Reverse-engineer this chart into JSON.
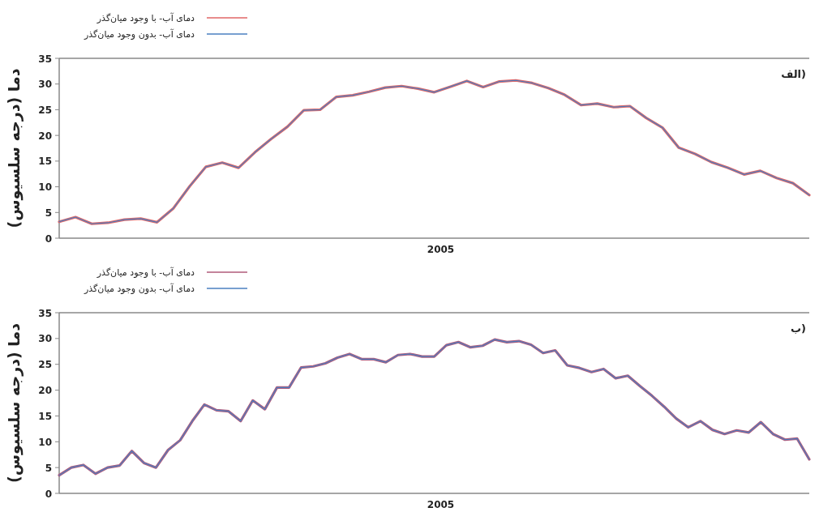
{
  "chart_data": [
    {
      "type": "line",
      "ylabel": "دما (درجه سلسیوس)",
      "annotations": [
        "الف)",
        "2005"
      ],
      "legend": "top left",
      "ylim": [
        0,
        35
      ],
      "yticks": [
        0,
        5,
        10,
        15,
        20,
        25,
        30,
        35
      ],
      "categories": [
        null,
        null,
        null,
        null,
        null,
        null,
        null,
        null,
        null,
        null,
        null,
        null,
        null,
        null,
        null,
        null,
        null,
        null,
        null,
        null,
        null,
        null,
        null,
        null,
        null,
        null,
        null,
        null,
        null,
        null,
        null,
        null,
        null,
        null,
        null,
        null,
        null,
        null,
        null,
        null,
        null,
        null,
        null,
        null,
        null,
        null,
        null
      ],
      "series": [
        {
          "name": "دمای آب- با وجود میان‌گذر",
          "color": "#e06666",
          "values": [
            3.2,
            4.1,
            2.8,
            3.0,
            3.6,
            3.8,
            3.1,
            5.8,
            10.1,
            13.9,
            14.7,
            13.7,
            16.7,
            19.3,
            21.7,
            24.9,
            25.0,
            27.5,
            27.8,
            28.5,
            29.3,
            29.6,
            29.1,
            28.4,
            29.5,
            30.6,
            29.4,
            30.5,
            30.7,
            30.2,
            29.2,
            27.9,
            25.9,
            26.2,
            25.5,
            25.7,
            23.4,
            21.5,
            17.6,
            16.4,
            14.8,
            13.7,
            12.4,
            13.1,
            11.7,
            10.7,
            8.4
          ]
        },
        {
          "name": "دمای آب- بدون وجود میان‌گذر",
          "color": "#4a7fc0",
          "values": [
            3.2,
            4.1,
            2.8,
            3.0,
            3.6,
            3.8,
            3.1,
            5.8,
            10.1,
            13.9,
            14.7,
            13.7,
            16.7,
            19.3,
            21.7,
            24.9,
            25.0,
            27.5,
            27.8,
            28.5,
            29.3,
            29.6,
            29.1,
            28.4,
            29.5,
            30.6,
            29.4,
            30.5,
            30.7,
            30.2,
            29.2,
            27.9,
            25.9,
            26.2,
            25.5,
            25.7,
            23.4,
            21.5,
            17.6,
            16.4,
            14.8,
            13.7,
            12.4,
            13.1,
            11.7,
            10.7,
            8.4
          ]
        }
      ]
    },
    {
      "type": "line",
      "ylabel": "دما (درجه سلسیوس)",
      "annotations": [
        "ب)",
        "2005"
      ],
      "legend": "top left",
      "ylim": [
        0,
        35
      ],
      "yticks": [
        0,
        5,
        10,
        15,
        20,
        25,
        30,
        35
      ],
      "categories": [
        null,
        null,
        null,
        null,
        null,
        null,
        null,
        null,
        null,
        null,
        null,
        null,
        null,
        null,
        null,
        null,
        null,
        null,
        null,
        null,
        null,
        null,
        null,
        null,
        null,
        null,
        null,
        null,
        null,
        null,
        null,
        null,
        null,
        null,
        null,
        null,
        null,
        null,
        null,
        null,
        null,
        null,
        null,
        null,
        null,
        null,
        null,
        null,
        null,
        null,
        null,
        null,
        null,
        null,
        null,
        null,
        null,
        null,
        null,
        null,
        null,
        null,
        null
      ],
      "series": [
        {
          "name": "دمای آب- با وجود میان‌گذر",
          "color": "#b05a7a",
          "values": [
            3.5,
            5.0,
            5.5,
            3.8,
            5.0,
            5.4,
            8.2,
            5.9,
            5.0,
            8.4,
            10.3,
            14.0,
            17.2,
            16.1,
            15.9,
            14.0,
            18.0,
            16.3,
            20.5,
            20.5,
            24.4,
            24.6,
            25.2,
            26.3,
            27.0,
            26.0,
            26.0,
            25.4,
            26.8,
            27.0,
            26.5,
            26.5,
            28.7,
            29.3,
            28.3,
            28.6,
            29.8,
            29.3,
            29.5,
            28.8,
            27.2,
            27.7,
            24.8,
            24.3,
            23.5,
            24.1,
            22.3,
            22.8,
            20.8,
            18.9,
            16.8,
            14.5,
            12.8,
            14.0,
            12.3,
            11.5,
            12.2,
            11.8,
            13.8,
            11.5,
            10.4,
            10.6,
            6.6
          ]
        },
        {
          "name": "دمای آب- بدون وجود میان‌گذر",
          "color": "#4a7fc0",
          "values": [
            3.5,
            5.0,
            5.5,
            3.8,
            5.0,
            5.4,
            8.2,
            5.9,
            5.0,
            8.4,
            10.3,
            14.0,
            17.2,
            16.1,
            15.9,
            14.0,
            18.0,
            16.3,
            20.5,
            20.5,
            24.4,
            24.6,
            25.2,
            26.3,
            27.0,
            26.0,
            26.0,
            25.4,
            26.8,
            27.0,
            26.5,
            26.5,
            28.7,
            29.3,
            28.3,
            28.6,
            29.8,
            29.3,
            29.5,
            28.8,
            27.2,
            27.7,
            24.8,
            24.3,
            23.5,
            24.1,
            22.3,
            22.8,
            20.8,
            18.9,
            16.8,
            14.5,
            12.8,
            14.0,
            12.3,
            11.5,
            12.2,
            11.8,
            13.8,
            11.5,
            10.4,
            10.6,
            6.6
          ]
        }
      ]
    }
  ]
}
